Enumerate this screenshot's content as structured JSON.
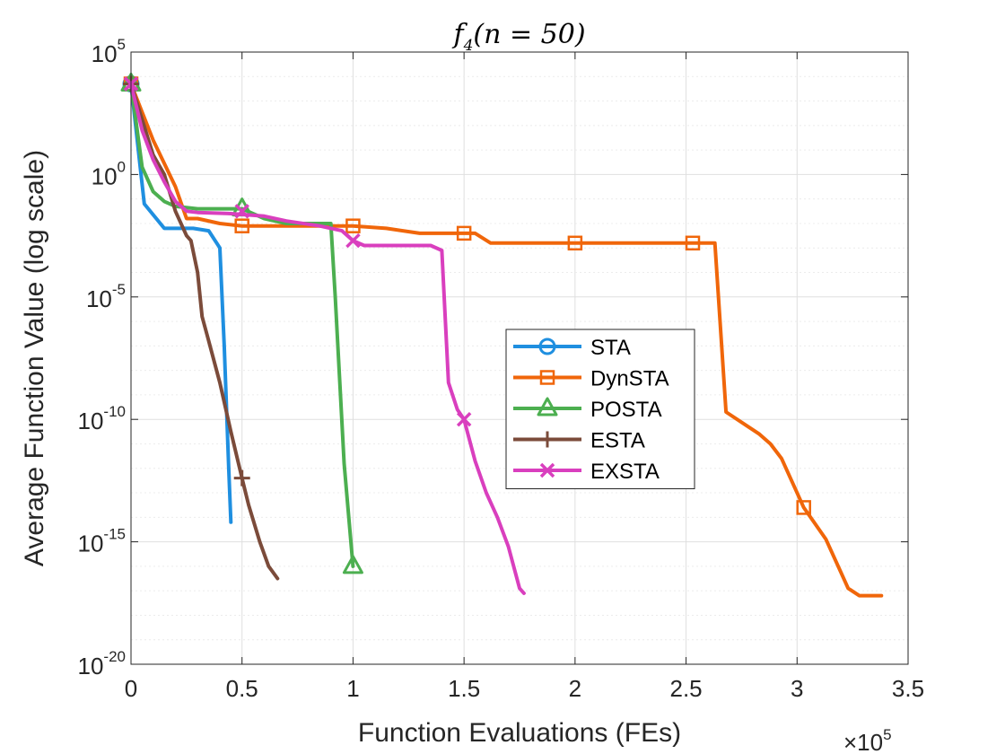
{
  "chart_data": {
    "type": "line",
    "title": "f4(n = 50)",
    "title_parts": {
      "f": "f",
      "sub": "4",
      "rest": "(n = 50)"
    },
    "xlabel": "Function Evaluations (FEs)",
    "ylabel": "Average Function Value (log scale)",
    "x_multiplier": {
      "base": "×10",
      "exp": "5"
    },
    "xlim": [
      0,
      3.5
    ],
    "ylim_log10": [
      -20,
      5
    ],
    "x_ticks": [
      "0",
      "0.5",
      "1",
      "1.5",
      "2",
      "2.5",
      "3",
      "3.5"
    ],
    "y_ticks": [
      {
        "base": "10",
        "exp": "5",
        "log": 5
      },
      {
        "base": "10",
        "exp": "0",
        "log": 0
      },
      {
        "base": "10",
        "exp": "-5",
        "log": -5
      },
      {
        "base": "10",
        "exp": "-10",
        "log": -10
      },
      {
        "base": "10",
        "exp": "-15",
        "log": -15
      },
      {
        "base": "10",
        "exp": "-20",
        "log": -20
      }
    ],
    "grid": true,
    "legend_position": "center-right",
    "series": [
      {
        "name": "STA",
        "color": "#1f8fe0",
        "marker": "circle",
        "points": [
          [
            0,
            3.7
          ],
          [
            0.06,
            -1.2
          ],
          [
            0.15,
            -2.2
          ],
          [
            0.28,
            -2.2
          ],
          [
            0.35,
            -2.3
          ],
          [
            0.4,
            -3.0
          ],
          [
            0.42,
            -7.0
          ],
          [
            0.44,
            -12.0
          ],
          [
            0.45,
            -14.2
          ]
        ],
        "markers": [
          [
            0,
            3.7
          ]
        ]
      },
      {
        "name": "DynSTA",
        "color": "#f0660a",
        "marker": "square",
        "points": [
          [
            0,
            3.7
          ],
          [
            0.1,
            1.4
          ],
          [
            0.2,
            -0.5
          ],
          [
            0.25,
            -1.8
          ],
          [
            0.3,
            -1.8
          ],
          [
            0.4,
            -2.0
          ],
          [
            0.5,
            -2.1
          ],
          [
            0.7,
            -2.1
          ],
          [
            1.0,
            -2.1
          ],
          [
            1.15,
            -2.2
          ],
          [
            1.3,
            -2.4
          ],
          [
            1.5,
            -2.4
          ],
          [
            1.55,
            -2.4
          ],
          [
            1.62,
            -2.8
          ],
          [
            2.0,
            -2.8
          ],
          [
            2.53,
            -2.8
          ],
          [
            2.63,
            -2.8
          ],
          [
            2.68,
            -9.7
          ],
          [
            2.78,
            -10.3
          ],
          [
            2.83,
            -10.6
          ],
          [
            2.88,
            -11.0
          ],
          [
            2.93,
            -11.6
          ],
          [
            3.03,
            -13.6
          ],
          [
            3.13,
            -14.9
          ],
          [
            3.23,
            -16.9
          ],
          [
            3.28,
            -17.2
          ],
          [
            3.38,
            -17.2
          ]
        ],
        "markers": [
          [
            0,
            3.7
          ],
          [
            0.5,
            -2.1
          ],
          [
            1.0,
            -2.1
          ],
          [
            1.5,
            -2.4
          ],
          [
            2.0,
            -2.8
          ],
          [
            2.53,
            -2.8
          ],
          [
            3.03,
            -13.6
          ]
        ]
      },
      {
        "name": "POSTA",
        "color": "#4caf50",
        "marker": "triangle",
        "points": [
          [
            0,
            3.7
          ],
          [
            0.05,
            0.3
          ],
          [
            0.1,
            -0.7
          ],
          [
            0.15,
            -1.1
          ],
          [
            0.2,
            -1.3
          ],
          [
            0.3,
            -1.4
          ],
          [
            0.4,
            -1.4
          ],
          [
            0.5,
            -1.4
          ],
          [
            0.6,
            -1.8
          ],
          [
            0.7,
            -2.0
          ],
          [
            0.8,
            -2.0
          ],
          [
            0.9,
            -2.0
          ],
          [
            0.92,
            -5.0
          ],
          [
            0.96,
            -11.8
          ],
          [
            1.0,
            -16.0
          ]
        ],
        "markers": [
          [
            0,
            3.7
          ],
          [
            0.5,
            -1.4
          ],
          [
            1.0,
            -16.0
          ]
        ]
      },
      {
        "name": "ESTA",
        "color": "#7b4b3a",
        "marker": "plus",
        "points": [
          [
            0,
            3.7
          ],
          [
            0.1,
            0.8
          ],
          [
            0.15,
            0.0
          ],
          [
            0.2,
            -1.5
          ],
          [
            0.25,
            -2.5
          ],
          [
            0.27,
            -2.7
          ],
          [
            0.3,
            -4.0
          ],
          [
            0.32,
            -5.8
          ],
          [
            0.35,
            -6.8
          ],
          [
            0.4,
            -8.5
          ],
          [
            0.45,
            -10.5
          ],
          [
            0.5,
            -12.4
          ],
          [
            0.53,
            -13.5
          ],
          [
            0.58,
            -15.0
          ],
          [
            0.62,
            -16.0
          ],
          [
            0.66,
            -16.5
          ]
        ],
        "markers": [
          [
            0,
            3.7
          ],
          [
            0.5,
            -12.4
          ]
        ]
      },
      {
        "name": "EXSTA",
        "color": "#d93fbe",
        "marker": "cross",
        "points": [
          [
            0,
            3.7
          ],
          [
            0.05,
            1.8
          ],
          [
            0.1,
            0.6
          ],
          [
            0.15,
            -0.3
          ],
          [
            0.2,
            -1.1
          ],
          [
            0.25,
            -1.5
          ],
          [
            0.3,
            -1.55
          ],
          [
            0.45,
            -1.6
          ],
          [
            0.6,
            -1.7
          ],
          [
            0.7,
            -1.9
          ],
          [
            0.85,
            -2.1
          ],
          [
            0.95,
            -2.3
          ],
          [
            1.0,
            -2.7
          ],
          [
            1.05,
            -2.9
          ],
          [
            1.2,
            -2.9
          ],
          [
            1.35,
            -2.9
          ],
          [
            1.4,
            -3.1
          ],
          [
            1.43,
            -8.5
          ],
          [
            1.47,
            -9.6
          ],
          [
            1.5,
            -10.0
          ],
          [
            1.55,
            -11.7
          ],
          [
            1.6,
            -13.0
          ],
          [
            1.65,
            -14.0
          ],
          [
            1.7,
            -15.2
          ],
          [
            1.75,
            -16.9
          ],
          [
            1.77,
            -17.1
          ]
        ],
        "markers": [
          [
            0,
            3.7
          ],
          [
            0.5,
            -1.5
          ],
          [
            1.0,
            -2.7
          ],
          [
            1.5,
            -10.0
          ]
        ]
      }
    ]
  }
}
